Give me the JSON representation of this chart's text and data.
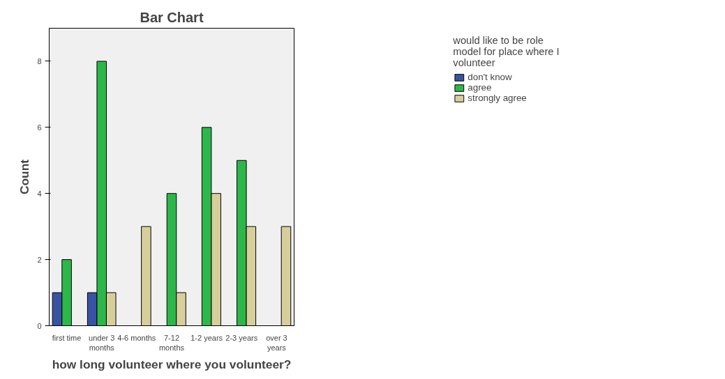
{
  "chart_data": {
    "type": "bar",
    "title": "Bar Chart",
    "xlabel": "how long volunteer where you volunteer?",
    "ylabel": "Count",
    "legend_title": "would like to be role model for place where I volunteer",
    "categories": [
      "first time",
      "under 3 months",
      "4-6 months",
      "7-12 months",
      "1-2 years",
      "2-3 years",
      "over 3 years"
    ],
    "series": [
      {
        "name": "don't know",
        "color": "#3953a4",
        "values": [
          1,
          1,
          null,
          null,
          null,
          null,
          null
        ]
      },
      {
        "name": "agree",
        "color": "#2db74a",
        "values": [
          2,
          8,
          null,
          4,
          6,
          5,
          null
        ]
      },
      {
        "name": "strongly agree",
        "color": "#d7cf9b",
        "values": [
          null,
          1,
          3,
          1,
          4,
          3,
          3
        ]
      }
    ],
    "ylim": [
      0,
      9
    ],
    "yticks": [
      0,
      2,
      4,
      6,
      8
    ],
    "grid": false,
    "legend": "right"
  }
}
